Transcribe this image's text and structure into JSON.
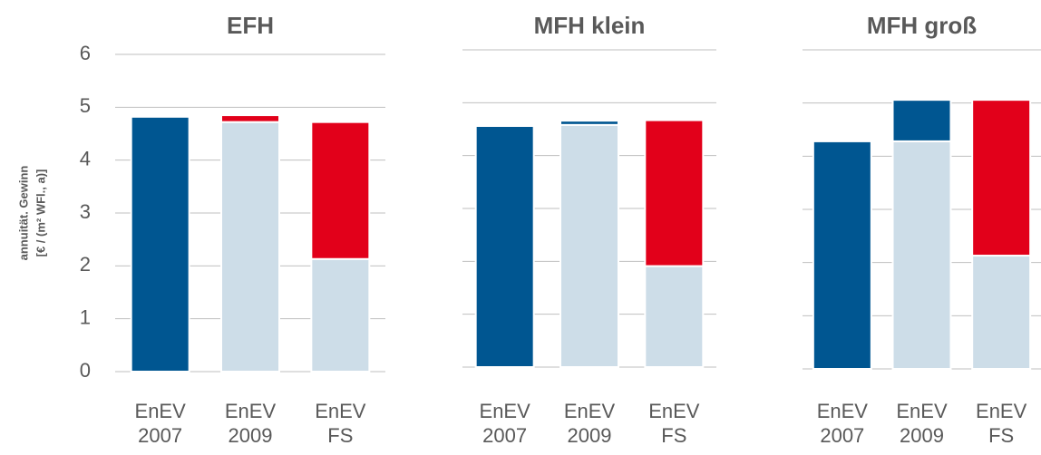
{
  "chart_data": [
    {
      "type": "bar",
      "stacked": true,
      "title": "EFH",
      "ylabel": [
        "annuität. Gewinn",
        "[€ / (m² WFl., a)]"
      ],
      "categories": [
        "EnEV 2007",
        "EnEV 2009",
        "EnEV FS"
      ],
      "series": [
        {
          "color": "#cddde8",
          "values": [
            0,
            4.72,
            2.13
          ]
        },
        {
          "color": "#005691",
          "values": [
            4.82,
            0,
            0
          ]
        },
        {
          "color": "#e2001a",
          "values": [
            0,
            0.13,
            2.59
          ]
        }
      ],
      "ylim": [
        0,
        6
      ],
      "yticks": [
        0,
        1,
        2,
        3,
        4,
        5,
        6
      ],
      "ytick_labels": true,
      "grid": true
    },
    {
      "type": "bar",
      "stacked": true,
      "title": "MFH klein",
      "categories": [
        "EnEV 2007",
        "EnEV 2009",
        "EnEV FS"
      ],
      "series": [
        {
          "color": "#cddde8",
          "values": [
            0,
            4.58,
            1.91
          ]
        },
        {
          "color": "#005691",
          "values": [
            4.56,
            0.08,
            0
          ]
        },
        {
          "color": "#e2001a",
          "values": [
            0,
            0,
            2.76
          ]
        }
      ],
      "ylim": [
        0,
        6
      ],
      "yticks": [
        0,
        1,
        2,
        3,
        4,
        5,
        6
      ],
      "ytick_labels": false,
      "grid": true
    },
    {
      "type": "bar",
      "stacked": true,
      "title": "MFH groß",
      "categories": [
        "EnEV 2007",
        "EnEV 2009",
        "EnEV FS"
      ],
      "series": [
        {
          "color": "#cddde8",
          "values": [
            0,
            4.28,
            2.13
          ]
        },
        {
          "color": "#005691",
          "values": [
            4.28,
            0.78,
            0
          ]
        },
        {
          "color": "#e2001a",
          "values": [
            0,
            0,
            2.93
          ]
        }
      ],
      "ylim": [
        0,
        6
      ],
      "yticks": [
        0,
        1,
        2,
        3,
        4,
        5,
        6
      ],
      "ytick_labels": false,
      "grid": true
    }
  ]
}
